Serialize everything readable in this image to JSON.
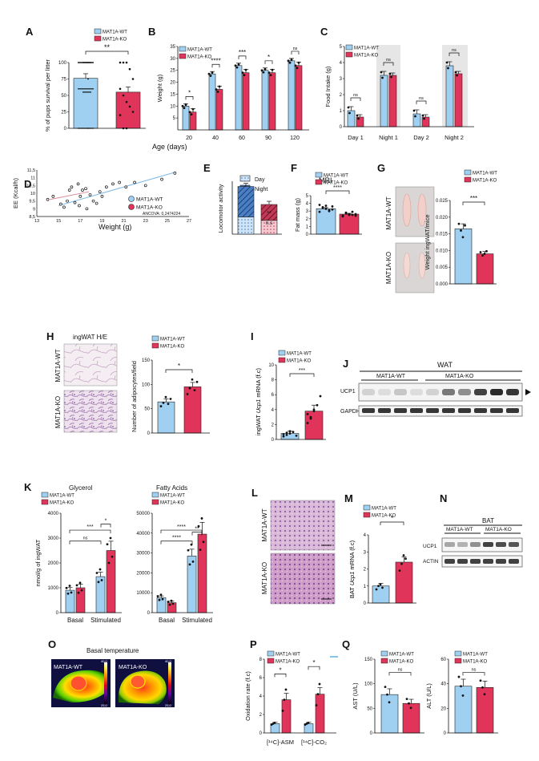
{
  "colors": {
    "wt": "#9fd0f2",
    "wt_stroke": "#2c6fa8",
    "ko": "#e0345b",
    "ko_light": "#f1a3b4",
    "grey_band": "#e6e6e6"
  },
  "legend": {
    "wt": "MAT1A-WT",
    "ko": "MAT1A-KO"
  },
  "panels": {
    "A": {
      "label": "A",
      "ylabel": "% of pups survival per litter",
      "sig": "**"
    },
    "B": {
      "label": "B",
      "ylabel": "Weight (g)",
      "xlabel": "Age (days)",
      "sig": [
        "*",
        "****",
        "***",
        "*",
        "ns"
      ]
    },
    "C": {
      "label": "C",
      "ylabel": "Food Intake (g)",
      "sig": [
        "ns",
        "ns",
        "ns",
        "ns"
      ]
    },
    "D": {
      "label": "D",
      "ylabel": "EE (Kcal/h)",
      "xlabel": "Weight (g)",
      "note": "ANCOVA: 0,2474224"
    },
    "E": {
      "label": "E",
      "ylabel": "Locomotor activity",
      "legend_day": "Day",
      "legend_night": "Night",
      "sig": "**",
      "sig2": "n.s"
    },
    "F": {
      "label": "F",
      "title": "MRI",
      "ylabel": "Fat mass (g)",
      "sig": "****"
    },
    "G": {
      "label": "G",
      "ylabel": "Weight ingWAT/mice",
      "sig": "***",
      "row_wt": "MAT1A-WT",
      "row_ko": "MAT1A-KO"
    },
    "H": {
      "label": "H",
      "title": "ingWAT H/E",
      "ylabel": "Number of adipocytes/field",
      "sig": "*",
      "row_wt": "MAT1A-WT",
      "row_ko": "MAT1A-KO"
    },
    "I": {
      "label": "I",
      "ylabel_pre": "ingWAT ",
      "ylabel_it": "Ucp1",
      "ylabel_post": " mRNA (f.c)",
      "sig": "***"
    },
    "J": {
      "label": "J",
      "title": "WAT",
      "grp_wt": "MAT1A-WT",
      "grp_ko": "MAT1A-KO",
      "row1": "UCP1",
      "row2": "GAPDH"
    },
    "K": {
      "label": "K",
      "title1": "Glycerol",
      "title2": "Fatty Acids",
      "ylabel": "nmol/g of ingWAT",
      "x1": "Basal",
      "x2": "Stimulated",
      "sig1": [
        "ns",
        "***",
        "*"
      ],
      "sig2": [
        "****",
        "****",
        "**"
      ]
    },
    "L": {
      "label": "L",
      "row_wt": "MAT1A-WT",
      "row_ko": "MAT1A-KO"
    },
    "M": {
      "label": "M",
      "ylabel_pre": "BAT ",
      "ylabel_it": "Ucp1",
      "ylabel_post": " mRNA (f.c)",
      "sig": "*"
    },
    "N": {
      "label": "N",
      "title": "BAT",
      "grp_wt": "MAT1A-WT",
      "grp_ko": "MAT1A-KO",
      "row1": "UCP1",
      "row2": "ACTIN"
    },
    "O": {
      "label": "O",
      "title": "Basal  temperature",
      "wt": "MAT1A-WT",
      "ko": "MAT1A-KO",
      "scale_top": "40,0",
      "scale_bot": "25,0"
    },
    "P": {
      "label": "P",
      "ylabel": "Oxidation rate (f.c)",
      "x1": "[¹⁴C]-ASM",
      "x2": "[¹⁴C]-CO₂",
      "sig": [
        "*",
        "*"
      ]
    },
    "Q": {
      "label": "Q",
      "ylabel1": "AST (U/L)",
      "ylabel2": "ALT (U/L)",
      "sig": [
        "ns",
        "ns"
      ]
    }
  },
  "chart_data": [
    {
      "id": "A",
      "type": "bar",
      "categories": [
        "MAT1A-WT",
        "MAT1A-KO"
      ],
      "values": [
        76,
        55
      ],
      "ylim": [
        0,
        100
      ],
      "yticks": [
        0,
        25,
        50,
        75,
        100
      ],
      "ylabel": "% of pups survival per litter"
    },
    {
      "id": "B",
      "type": "bar",
      "categories": [
        "20",
        "40",
        "60",
        "90",
        "120"
      ],
      "series": [
        {
          "name": "MAT1A-WT",
          "values": [
            10,
            23.5,
            27,
            25,
            29
          ]
        },
        {
          "name": "MAT1A-KO",
          "values": [
            7.5,
            17,
            24,
            24,
            27
          ]
        }
      ],
      "ylim": [
        0,
        35
      ],
      "yticks": [
        5,
        10,
        15,
        20,
        25,
        30,
        35
      ],
      "ylabel": "Weight (g)",
      "xlabel": "Age (days)"
    },
    {
      "id": "C",
      "type": "bar",
      "categories": [
        "Day 1",
        "Night 1",
        "Day 2",
        "Night 2"
      ],
      "series": [
        {
          "name": "MAT1A-WT",
          "values": [
            1.0,
            3.2,
            0.8,
            3.8
          ]
        },
        {
          "name": "MAT1A-KO",
          "values": [
            0.6,
            3.2,
            0.6,
            3.3
          ]
        }
      ],
      "ylim": [
        0,
        5
      ],
      "yticks": [
        0,
        1,
        2,
        3,
        4,
        5
      ],
      "ylabel": "Food Intake (g)"
    },
    {
      "id": "D",
      "type": "scatter",
      "xlabel": "Weight (g)",
      "ylabel": "EE (Kcal/h)",
      "xlim": [
        13,
        27
      ],
      "ylim": [
        8.5,
        11.5
      ],
      "xticks": [
        13,
        15,
        17,
        19,
        21,
        23,
        25,
        27
      ],
      "yticks": [
        "8,5",
        "9",
        "9,5",
        "10",
        "10,5",
        "11",
        "11,5"
      ]
    },
    {
      "id": "E",
      "type": "bar",
      "categories": [
        "MAT1A-WT",
        "MAT1A-KO"
      ],
      "series": [
        {
          "name": "Day",
          "values": [
            6500,
            5200
          ]
        },
        {
          "name": "Night",
          "values": [
            11500,
            6000
          ]
        }
      ],
      "ylim": [
        0,
        20000
      ],
      "ylabel": "Locomotor activity"
    },
    {
      "id": "F",
      "type": "bar",
      "categories": [
        "MAT1A-WT",
        "MAT1A-KO"
      ],
      "values": [
        3.3,
        2.6
      ],
      "ylim": [
        0,
        5
      ],
      "yticks": [
        0,
        1,
        2,
        3,
        4,
        5
      ],
      "ylabel": "Fat mass (g)",
      "title": "MRI"
    },
    {
      "id": "G",
      "type": "bar",
      "categories": [
        "MAT1A-WT",
        "MAT1A-KO"
      ],
      "values": [
        0.0165,
        0.009
      ],
      "ylim": [
        0,
        0.025
      ],
      "yticks": [
        "0.000",
        "0.005",
        "0.010",
        "0.015",
        "0.020",
        "0.025"
      ],
      "ylabel": "Weight ingWAT/mice"
    },
    {
      "id": "H",
      "type": "bar",
      "categories": [
        "MAT1A-WT",
        "MAT1A-KO"
      ],
      "values": [
        64,
        95
      ],
      "ylim": [
        0,
        150
      ],
      "yticks": [
        0,
        50,
        100,
        150
      ],
      "ylabel": "Number of adipocytes/field"
    },
    {
      "id": "I",
      "type": "bar",
      "categories": [
        "MAT1A-WT",
        "MAT1A-KO"
      ],
      "values": [
        0.8,
        3.8
      ],
      "ylim": [
        0,
        10
      ],
      "yticks": [
        0,
        2,
        4,
        6,
        8,
        10
      ],
      "ylabel": "ingWAT Ucp1 mRNA (f.c)"
    },
    {
      "id": "K1",
      "type": "bar",
      "title": "Glycerol",
      "categories": [
        "Basal",
        "Stimulated"
      ],
      "series": [
        {
          "name": "MAT1A-WT",
          "values": [
            900,
            1450
          ]
        },
        {
          "name": "MAT1A-KO",
          "values": [
            1000,
            2500
          ]
        }
      ],
      "ylim": [
        0,
        4000
      ],
      "yticks": [
        0,
        1000,
        2000,
        3000,
        4000
      ],
      "ylabel": "nmol/g of ingWAT"
    },
    {
      "id": "K2",
      "type": "bar",
      "title": "Fatty Acids",
      "categories": [
        "Basal",
        "Stimulated"
      ],
      "series": [
        {
          "name": "MAT1A-WT",
          "values": [
            7500,
            28500
          ]
        },
        {
          "name": "MAT1A-KO",
          "values": [
            5000,
            39500
          ]
        }
      ],
      "ylim": [
        0,
        50000
      ],
      "yticks": [
        0,
        10000,
        20000,
        30000,
        40000,
        50000
      ]
    },
    {
      "id": "M",
      "type": "bar",
      "categories": [
        "MAT1A-WT",
        "MAT1A-KO"
      ],
      "values": [
        1.0,
        2.4
      ],
      "ylim": [
        0,
        4
      ],
      "yticks": [
        0,
        1,
        2,
        3,
        4
      ],
      "ylabel": "BAT Ucp1 mRNA (f.c)"
    },
    {
      "id": "P",
      "type": "bar",
      "categories": [
        "[¹⁴C]-ASM",
        "[¹⁴C]-CO₂"
      ],
      "series": [
        {
          "name": "MAT1A-WT",
          "values": [
            1.0,
            1.0
          ]
        },
        {
          "name": "MAT1A-KO",
          "values": [
            3.6,
            4.2
          ]
        }
      ],
      "ylim": [
        0,
        8
      ],
      "yticks": [
        0,
        2,
        4,
        6,
        8
      ],
      "ylabel": "Oxidation rate (f.c)"
    },
    {
      "id": "Q1",
      "type": "bar",
      "categories": [
        "MAT1A-WT",
        "MAT1A-KO"
      ],
      "values": [
        78,
        60
      ],
      "ylim": [
        0,
        150
      ],
      "yticks": [
        0,
        50,
        100,
        150
      ],
      "ylabel": "AST (U/L)"
    },
    {
      "id": "Q2",
      "type": "bar",
      "categories": [
        "MAT1A-WT",
        "MAT1A-KO"
      ],
      "values": [
        38,
        37
      ],
      "ylim": [
        0,
        60
      ],
      "yticks": [
        0,
        20,
        40,
        60
      ],
      "ylabel": "ALT (U/L)"
    }
  ]
}
